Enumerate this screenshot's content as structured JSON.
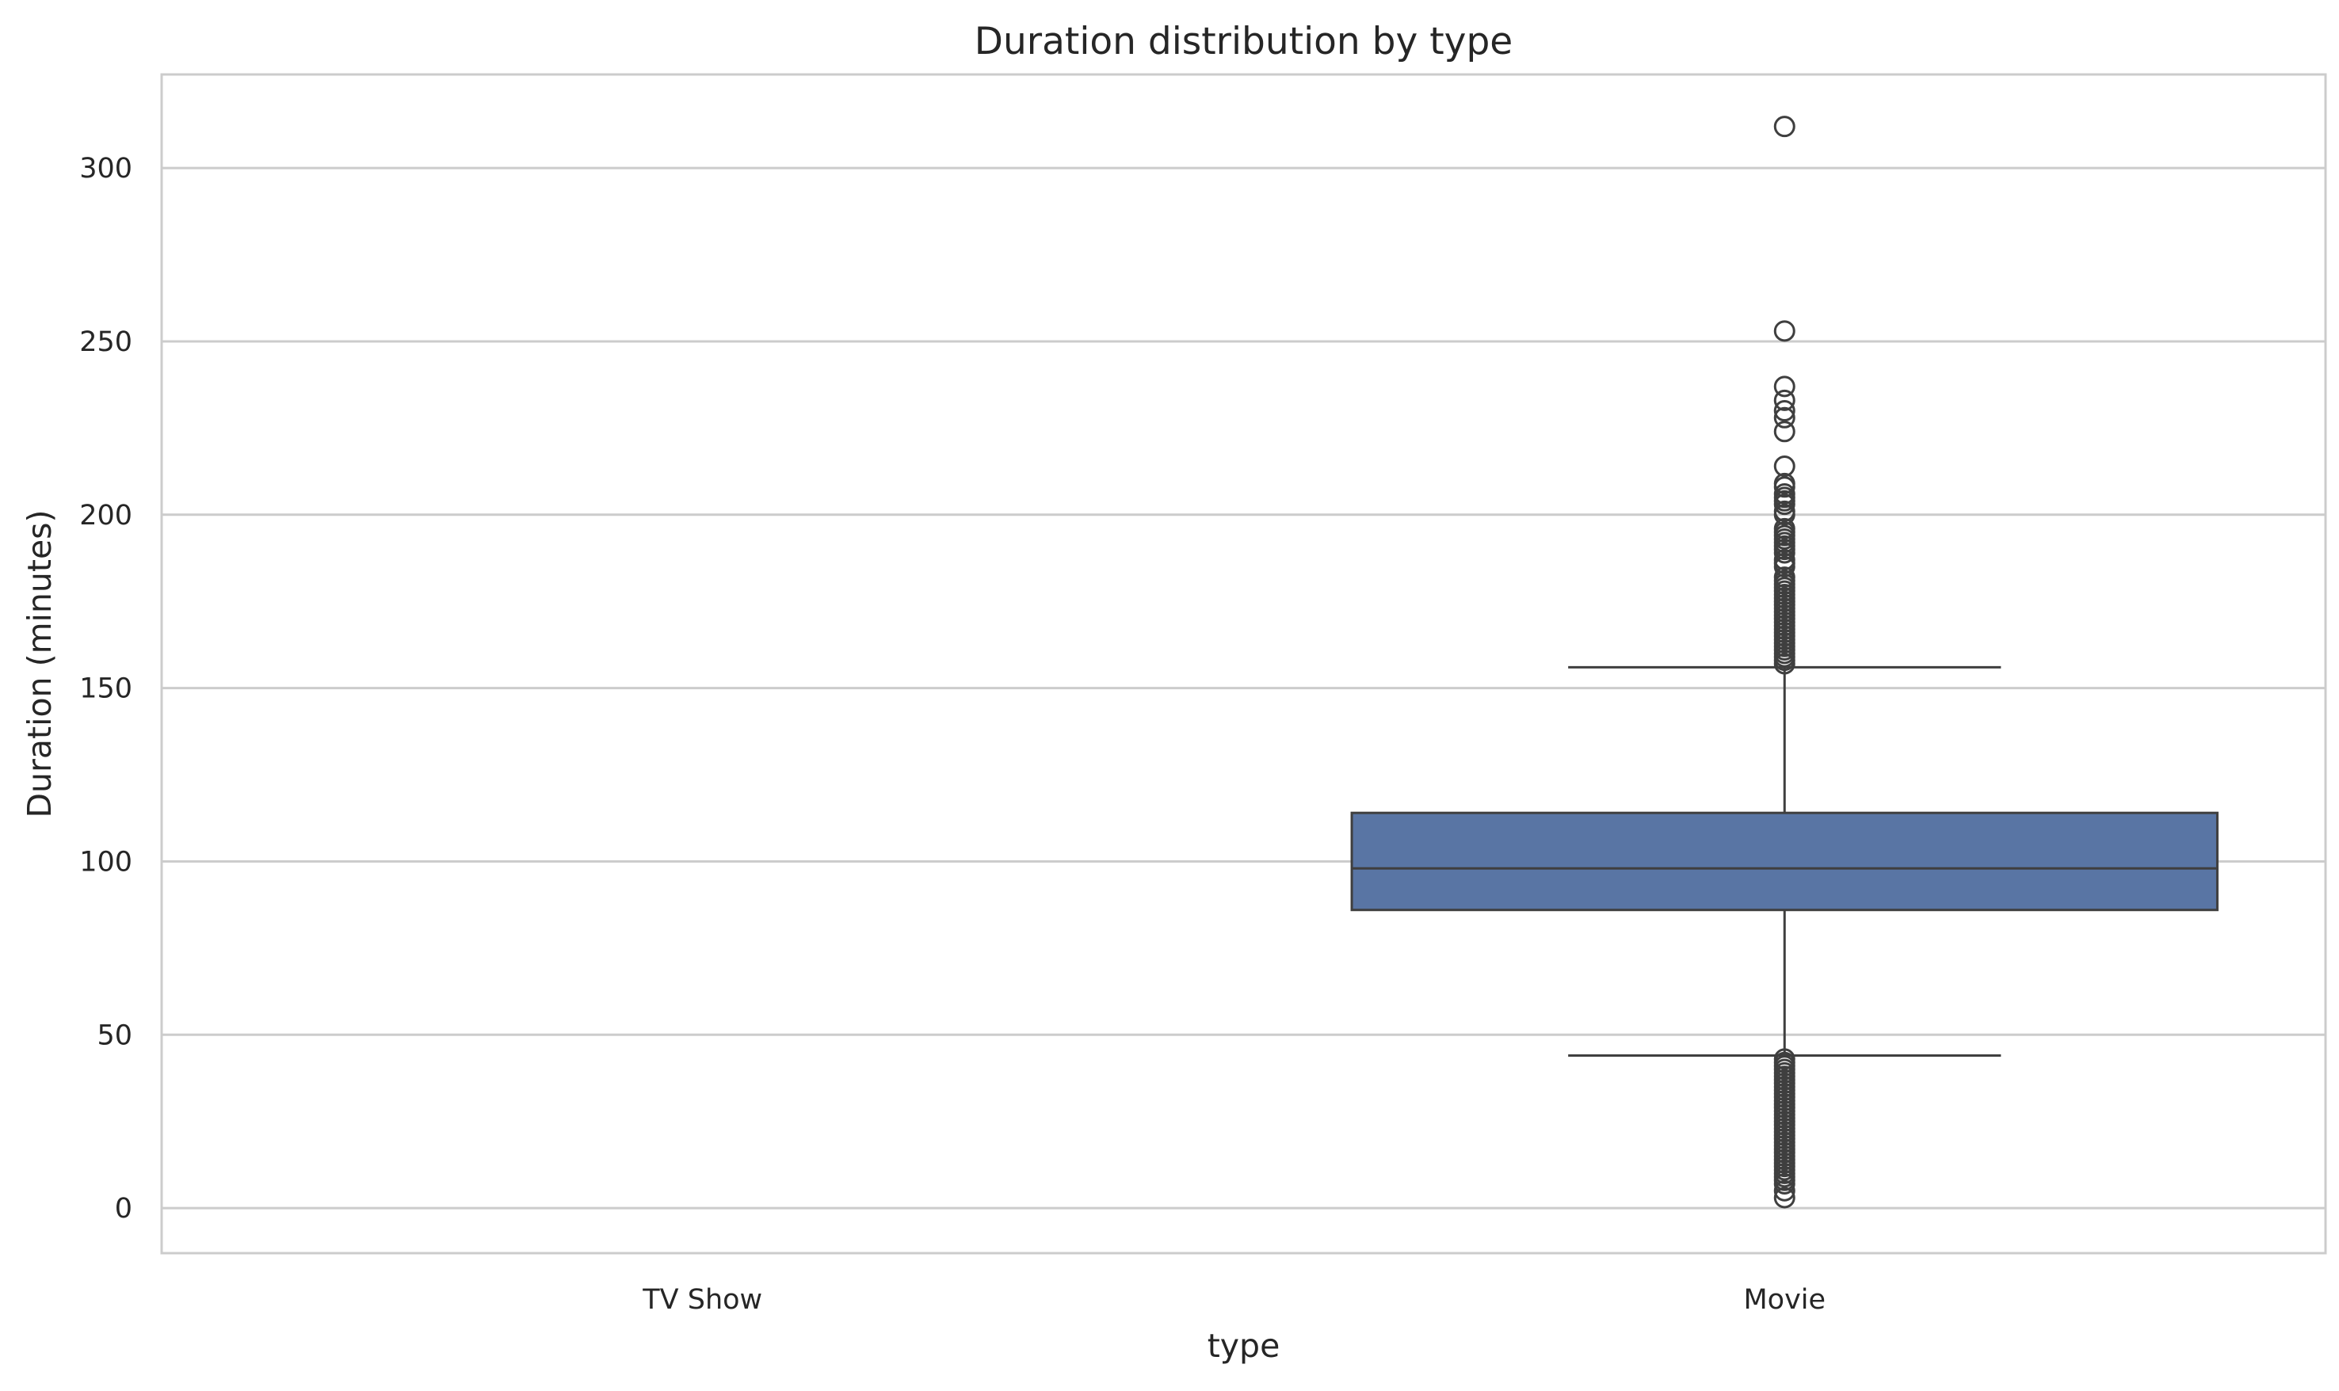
{
  "chart_data": {
    "type": "box",
    "title": "Duration distribution by type",
    "xlabel": "type",
    "ylabel": "Duration (minutes)",
    "categories": [
      "TV Show",
      "Movie"
    ],
    "ylim": [
      -13,
      327
    ],
    "yticks": [
      0,
      50,
      100,
      150,
      200,
      250,
      300
    ],
    "grid": true,
    "box_color": "#5975A4",
    "line_color": "#3f3f3f",
    "grid_color": "#cccccc",
    "spine_color": "#cccccc",
    "boxes": [
      {
        "category": "Movie",
        "whisker_low": 44,
        "q1": 86,
        "median": 98,
        "q3": 114,
        "whisker_high": 156,
        "outliers_high": [
          157,
          158,
          159,
          160,
          161,
          162,
          163,
          164,
          165,
          166,
          167,
          168,
          169,
          170,
          171,
          172,
          173,
          174,
          175,
          176,
          177,
          178,
          179,
          180,
          181,
          182,
          185,
          186,
          187,
          189,
          190,
          191,
          192,
          193,
          194,
          195,
          196,
          200,
          201,
          203,
          204,
          205,
          206,
          208,
          209,
          214,
          224,
          228,
          230,
          233,
          237,
          253,
          312
        ],
        "outliers_low": [
          3,
          5,
          7,
          8,
          9,
          10,
          11,
          12,
          13,
          14,
          15,
          16,
          17,
          18,
          19,
          20,
          21,
          22,
          23,
          24,
          25,
          26,
          27,
          28,
          29,
          30,
          31,
          32,
          33,
          34,
          35,
          36,
          37,
          38,
          39,
          40,
          41,
          42,
          43
        ]
      }
    ]
  }
}
